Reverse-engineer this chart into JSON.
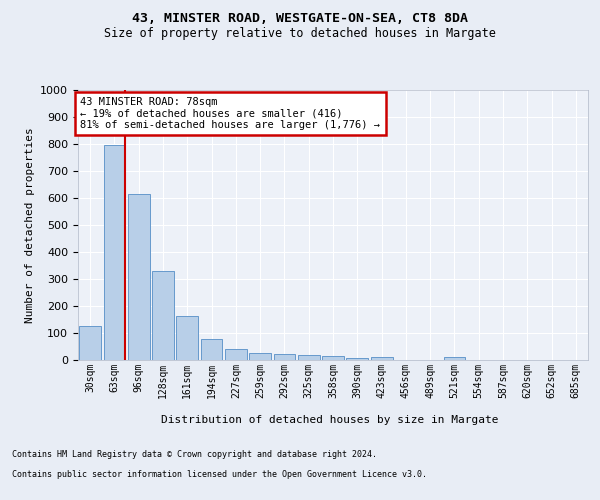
{
  "title1": "43, MINSTER ROAD, WESTGATE-ON-SEA, CT8 8DA",
  "title2": "Size of property relative to detached houses in Margate",
  "xlabel": "Distribution of detached houses by size in Margate",
  "ylabel": "Number of detached properties",
  "bar_labels": [
    "30sqm",
    "63sqm",
    "96sqm",
    "128sqm",
    "161sqm",
    "194sqm",
    "227sqm",
    "259sqm",
    "292sqm",
    "325sqm",
    "358sqm",
    "390sqm",
    "423sqm",
    "456sqm",
    "489sqm",
    "521sqm",
    "554sqm",
    "587sqm",
    "620sqm",
    "652sqm",
    "685sqm"
  ],
  "bar_values": [
    125,
    795,
    615,
    328,
    162,
    78,
    40,
    27,
    24,
    17,
    16,
    9,
    10,
    0,
    0,
    10,
    0,
    0,
    0,
    0,
    0
  ],
  "bar_color": "#b8cfe8",
  "bar_edge_color": "#6699cc",
  "vline_x": 1.45,
  "annotation_line1": "43 MINSTER ROAD: 78sqm",
  "annotation_line2": "← 19% of detached houses are smaller (416)",
  "annotation_line3": "81% of semi-detached houses are larger (1,776) →",
  "annotation_box_color": "#ffffff",
  "annotation_box_edge": "#cc0000",
  "vline_color": "#cc0000",
  "ylim": [
    0,
    1000
  ],
  "yticks": [
    0,
    100,
    200,
    300,
    400,
    500,
    600,
    700,
    800,
    900,
    1000
  ],
  "footnote1": "Contains HM Land Registry data © Crown copyright and database right 2024.",
  "footnote2": "Contains public sector information licensed under the Open Government Licence v3.0.",
  "bg_color": "#e8edf5",
  "axes_bg_color": "#edf1f8"
}
